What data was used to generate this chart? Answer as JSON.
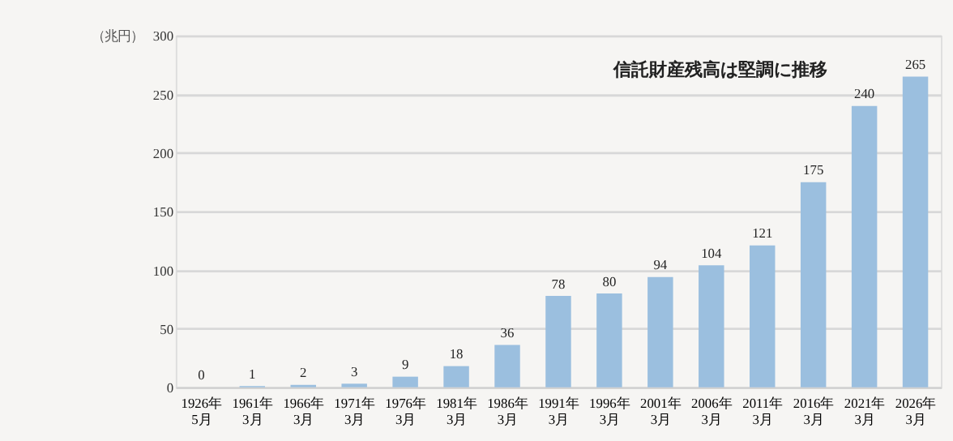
{
  "chart_data": {
    "type": "bar",
    "ylabel": "（兆円）",
    "categories": [
      "1926年\n5月",
      "1961年\n3月",
      "1966年\n3月",
      "1971年\n3月",
      "1976年\n3月",
      "1981年\n3月",
      "1986年\n3月",
      "1991年\n3月",
      "1996年\n3月",
      "2001年\n3月",
      "2006年\n3月",
      "2011年\n3月",
      "2016年\n3月",
      "2021年\n3月",
      "2026年\n3月"
    ],
    "values": [
      0,
      1,
      2,
      3,
      9,
      18,
      36,
      78,
      80,
      94,
      104,
      121,
      175,
      240,
      265
    ],
    "color": "#9bbfdf",
    "ylim": [
      0,
      300
    ],
    "yticks": [
      0,
      50,
      100,
      150,
      200,
      250,
      300
    ],
    "grid": "y",
    "data_labels": true,
    "annotations": [
      "信託財産残高は堅調に推移"
    ]
  }
}
